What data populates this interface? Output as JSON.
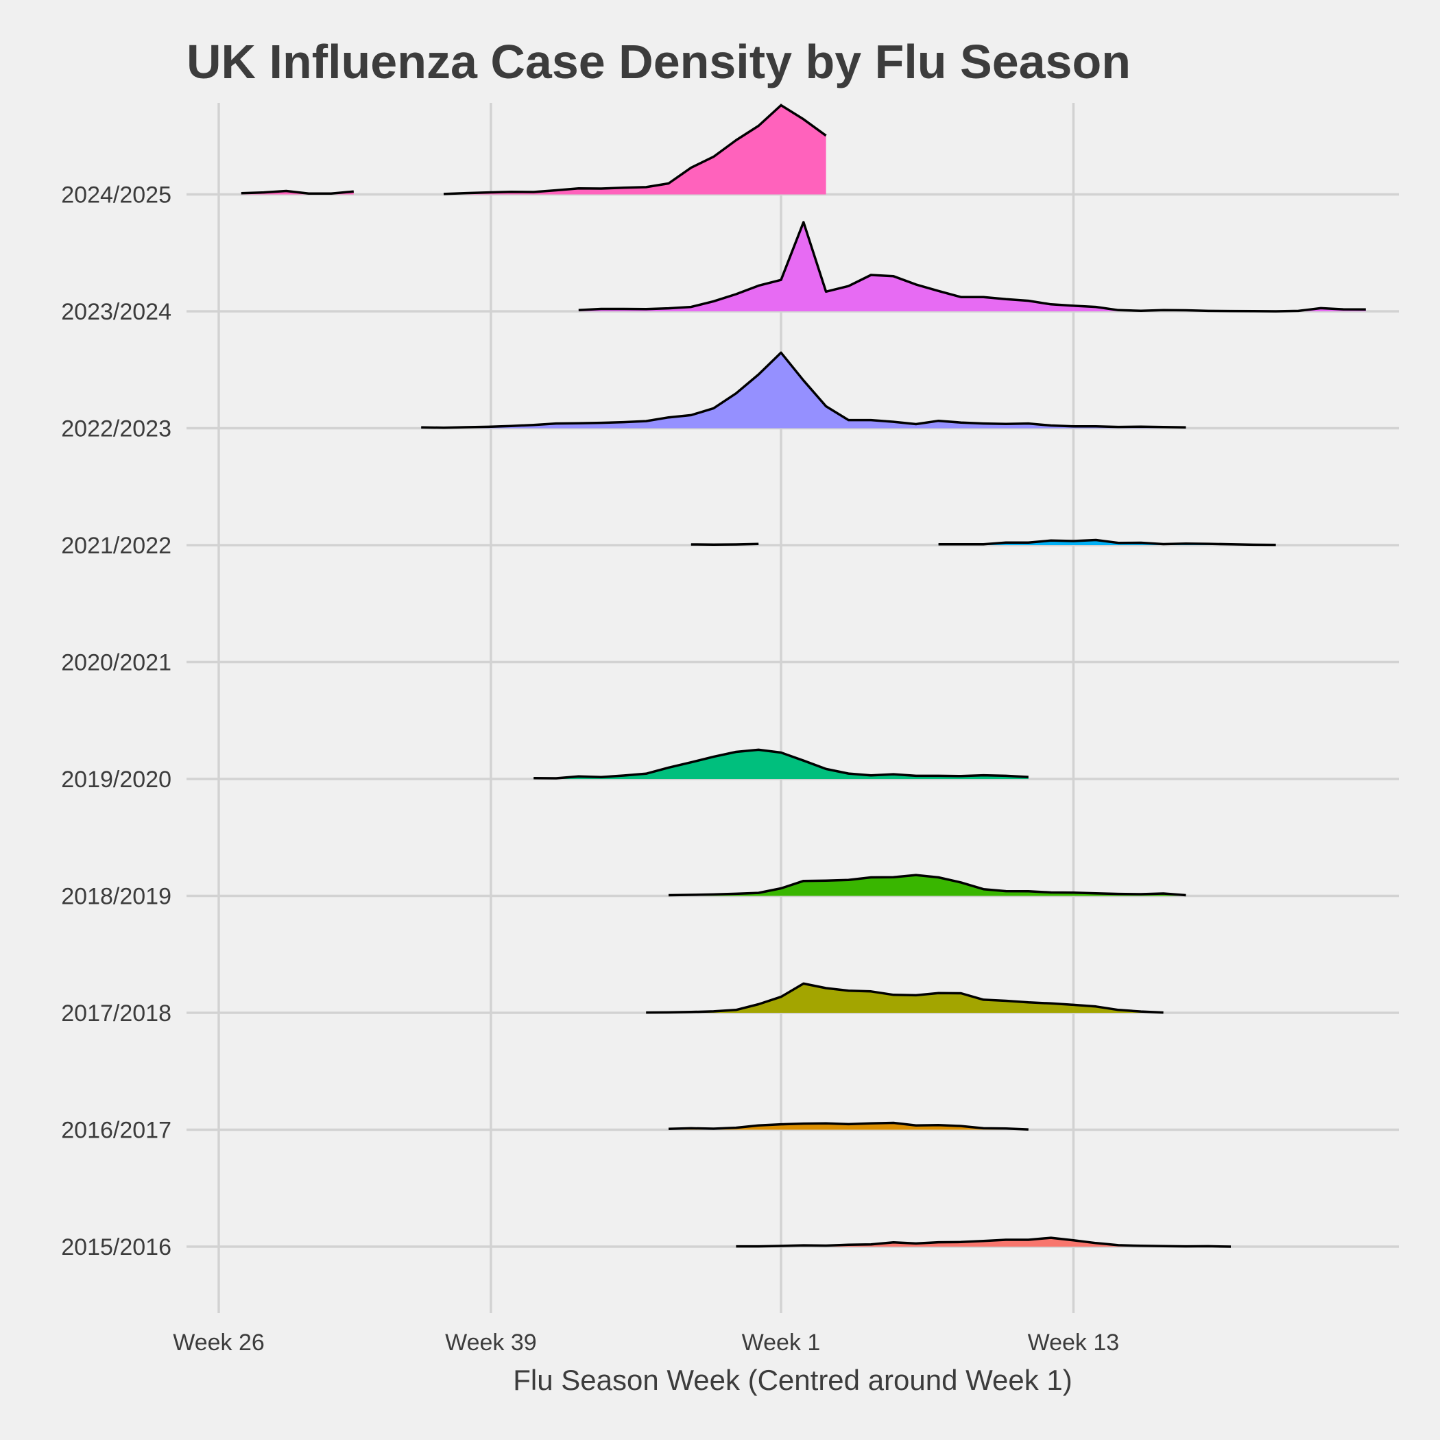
{
  "chart_data": {
    "type": "area",
    "subtype": "ridgeline",
    "title": "UK Influenza Case Density by Flu Season",
    "xlabel": "Flu Season Week (Centred around Week 1)",
    "ylabel": "",
    "x_unit": "weeks relative to Week 1",
    "x_ticks": [
      {
        "label": "Week 26",
        "value": -25
      },
      {
        "label": "Week 39",
        "value": -12.9
      },
      {
        "label": "Week 1",
        "value": 0
      },
      {
        "label": "Week 13",
        "value": 13
      }
    ],
    "xlim": [
      -27.5,
      28.5
    ],
    "grid": true,
    "legend": "none",
    "series": [
      {
        "name": "2015/2016",
        "color": "#F8766D",
        "segments": [
          [
            [
              -2,
              0.02
            ],
            [
              -1,
              0.02
            ],
            [
              0,
              0.05
            ],
            [
              1,
              0.09
            ],
            [
              2,
              0.07
            ],
            [
              3,
              0.13
            ],
            [
              4,
              0.16
            ],
            [
              5,
              0.3
            ],
            [
              6,
              0.22
            ],
            [
              7,
              0.31
            ],
            [
              8,
              0.32
            ],
            [
              9,
              0.4
            ],
            [
              10,
              0.48
            ],
            [
              11,
              0.48
            ],
            [
              12,
              0.62
            ],
            [
              13,
              0.44
            ],
            [
              14,
              0.25
            ],
            [
              15,
              0.1
            ],
            [
              16,
              0.06
            ],
            [
              17,
              0.04
            ],
            [
              18,
              0.02
            ],
            [
              19,
              0.03
            ],
            [
              20,
              0.0
            ]
          ]
        ]
      },
      {
        "name": "2016/2017",
        "color": "#DB8E00",
        "segments": [
          [
            [
              -5,
              0.06
            ],
            [
              -4,
              0.1
            ],
            [
              -3,
              0.07
            ],
            [
              -2,
              0.14
            ],
            [
              -1,
              0.3
            ],
            [
              0,
              0.38
            ],
            [
              1,
              0.43
            ],
            [
              2,
              0.44
            ],
            [
              3,
              0.39
            ],
            [
              4,
              0.44
            ],
            [
              5,
              0.48
            ],
            [
              6,
              0.3
            ],
            [
              7,
              0.32
            ],
            [
              8,
              0.26
            ],
            [
              9,
              0.1
            ],
            [
              10,
              0.08
            ],
            [
              11,
              0.02
            ]
          ]
        ]
      },
      {
        "name": "2017/2018",
        "color": "#A3A500",
        "segments": [
          [
            [
              -6,
              0.02
            ],
            [
              -5,
              0.03
            ],
            [
              -4,
              0.06
            ],
            [
              -3,
              0.1
            ],
            [
              -2,
              0.2
            ],
            [
              -1,
              0.6
            ],
            [
              0,
              1.12
            ],
            [
              1,
              2.05
            ],
            [
              2,
              1.73
            ],
            [
              3,
              1.55
            ],
            [
              4,
              1.5
            ],
            [
              5,
              1.26
            ],
            [
              6,
              1.23
            ],
            [
              7,
              1.38
            ],
            [
              8,
              1.37
            ],
            [
              9,
              0.92
            ],
            [
              10,
              0.84
            ],
            [
              11,
              0.73
            ],
            [
              12,
              0.66
            ],
            [
              13,
              0.56
            ],
            [
              14,
              0.44
            ],
            [
              15,
              0.2
            ],
            [
              16,
              0.09
            ],
            [
              17,
              0.02
            ]
          ]
        ]
      },
      {
        "name": "2018/2019",
        "color": "#39B600",
        "segments": [
          [
            [
              -5,
              0.05
            ],
            [
              -4,
              0.07
            ],
            [
              -3,
              0.1
            ],
            [
              -2,
              0.15
            ],
            [
              -1,
              0.21
            ],
            [
              0,
              0.53
            ],
            [
              1,
              1.05
            ],
            [
              2,
              1.07
            ],
            [
              3,
              1.12
            ],
            [
              4,
              1.3
            ],
            [
              5,
              1.31
            ],
            [
              6,
              1.46
            ],
            [
              7,
              1.3
            ],
            [
              8,
              0.94
            ],
            [
              9,
              0.47
            ],
            [
              10,
              0.33
            ],
            [
              11,
              0.32
            ],
            [
              12,
              0.24
            ],
            [
              13,
              0.23
            ],
            [
              14,
              0.18
            ],
            [
              15,
              0.14
            ],
            [
              16,
              0.12
            ],
            [
              17,
              0.17
            ],
            [
              18,
              0.05
            ]
          ]
        ]
      },
      {
        "name": "2019/2020",
        "color": "#00BF7D",
        "segments": [
          [
            [
              -11,
              0.06
            ],
            [
              -10,
              0.05
            ],
            [
              -9,
              0.18
            ],
            [
              -8,
              0.13
            ],
            [
              -7,
              0.24
            ],
            [
              -6,
              0.37
            ],
            [
              -5,
              0.8
            ],
            [
              -4,
              1.17
            ],
            [
              -3,
              1.56
            ],
            [
              -2,
              1.9
            ],
            [
              -1,
              2.05
            ],
            [
              0,
              1.85
            ],
            [
              1,
              1.29
            ],
            [
              2,
              0.7
            ],
            [
              3,
              0.38
            ],
            [
              4,
              0.25
            ],
            [
              5,
              0.33
            ],
            [
              6,
              0.22
            ],
            [
              7,
              0.22
            ],
            [
              8,
              0.2
            ],
            [
              9,
              0.26
            ],
            [
              10,
              0.22
            ],
            [
              11,
              0.14
            ]
          ]
        ]
      },
      {
        "name": "2020/2021",
        "color": "#00BBDD",
        "segments": []
      },
      {
        "name": "2021/2022",
        "color": "#00B0F6",
        "segments": [
          [
            [
              -4,
              0.05
            ],
            [
              -3,
              0.04
            ],
            [
              -2,
              0.05
            ],
            [
              -1,
              0.08
            ]
          ],
          [
            [
              7,
              0.06
            ],
            [
              8,
              0.06
            ],
            [
              9,
              0.06
            ],
            [
              10,
              0.18
            ],
            [
              11,
              0.18
            ],
            [
              12,
              0.32
            ],
            [
              13,
              0.29
            ],
            [
              14,
              0.36
            ],
            [
              15,
              0.16
            ],
            [
              16,
              0.17
            ],
            [
              17,
              0.07
            ],
            [
              18,
              0.11
            ],
            [
              19,
              0.09
            ],
            [
              20,
              0.06
            ],
            [
              21,
              0.03
            ],
            [
              22,
              0.02
            ]
          ]
        ]
      },
      {
        "name": "2022/2023",
        "color": "#9590FF",
        "segments": [
          [
            [
              -16,
              0.06
            ],
            [
              -15,
              0.04
            ],
            [
              -14,
              0.07
            ],
            [
              -13,
              0.1
            ],
            [
              -12,
              0.16
            ],
            [
              -11,
              0.23
            ],
            [
              -10,
              0.33
            ],
            [
              -9,
              0.35
            ],
            [
              -8,
              0.38
            ],
            [
              -7,
              0.43
            ],
            [
              -6,
              0.5
            ],
            [
              -5,
              0.76
            ],
            [
              -4,
              0.92
            ],
            [
              -3,
              1.4
            ],
            [
              -2,
              2.44
            ],
            [
              -1,
              3.77
            ],
            [
              0,
              5.3
            ],
            [
              1,
              3.35
            ],
            [
              2,
              1.54
            ],
            [
              3,
              0.57
            ],
            [
              4,
              0.57
            ],
            [
              5,
              0.45
            ],
            [
              6,
              0.29
            ],
            [
              7,
              0.52
            ],
            [
              8,
              0.4
            ],
            [
              9,
              0.33
            ],
            [
              10,
              0.3
            ],
            [
              11,
              0.33
            ],
            [
              12,
              0.19
            ],
            [
              13,
              0.13
            ],
            [
              14,
              0.13
            ],
            [
              15,
              0.09
            ],
            [
              16,
              0.11
            ],
            [
              17,
              0.08
            ],
            [
              18,
              0.06
            ]
          ]
        ]
      },
      {
        "name": "2023/2024",
        "color": "#E76BF3",
        "segments": [
          [
            [
              -9,
              0.08
            ],
            [
              -8,
              0.17
            ],
            [
              -7,
              0.17
            ],
            [
              -6,
              0.16
            ],
            [
              -5,
              0.21
            ],
            [
              -4,
              0.31
            ],
            [
              -3,
              0.7
            ],
            [
              -2,
              1.2
            ],
            [
              -1,
              1.8
            ],
            [
              0,
              2.2
            ],
            [
              1,
              6.25
            ],
            [
              2,
              1.38
            ],
            [
              3,
              1.77
            ],
            [
              4,
              2.55
            ],
            [
              5,
              2.46
            ],
            [
              6,
              1.88
            ],
            [
              7,
              1.43
            ],
            [
              8,
              1.0
            ],
            [
              9,
              1.0
            ],
            [
              10,
              0.85
            ],
            [
              11,
              0.74
            ],
            [
              12,
              0.49
            ],
            [
              13,
              0.39
            ],
            [
              14,
              0.31
            ],
            [
              15,
              0.08
            ],
            [
              16,
              0.04
            ],
            [
              17,
              0.08
            ],
            [
              18,
              0.07
            ],
            [
              19,
              0.03
            ],
            [
              20,
              0.02
            ],
            [
              21,
              0.01
            ],
            [
              22,
              0.0
            ],
            [
              23,
              0.03
            ],
            [
              24,
              0.22
            ],
            [
              25,
              0.14
            ],
            [
              26,
              0.13
            ]
          ]
        ]
      },
      {
        "name": "2024/2025",
        "color": "#FF62BC",
        "segments": [
          [
            [
              -24,
              0.08
            ],
            [
              -23,
              0.14
            ],
            [
              -22,
              0.24
            ],
            [
              -21,
              0.06
            ],
            [
              -20,
              0.06
            ],
            [
              -19,
              0.2
            ]
          ],
          [
            [
              -15,
              0.03
            ],
            [
              -14,
              0.09
            ],
            [
              -13,
              0.14
            ],
            [
              -12,
              0.18
            ],
            [
              -11,
              0.17
            ],
            [
              -10,
              0.29
            ],
            [
              -9,
              0.42
            ],
            [
              -8,
              0.41
            ],
            [
              -7,
              0.47
            ],
            [
              -6,
              0.51
            ],
            [
              -5,
              0.77
            ],
            [
              -4,
              1.87
            ],
            [
              -3,
              2.64
            ],
            [
              -2,
              3.8
            ],
            [
              -1,
              4.81
            ],
            [
              0,
              6.25
            ],
            [
              1,
              5.27
            ],
            [
              2,
              4.12
            ]
          ]
        ]
      }
    ]
  }
}
